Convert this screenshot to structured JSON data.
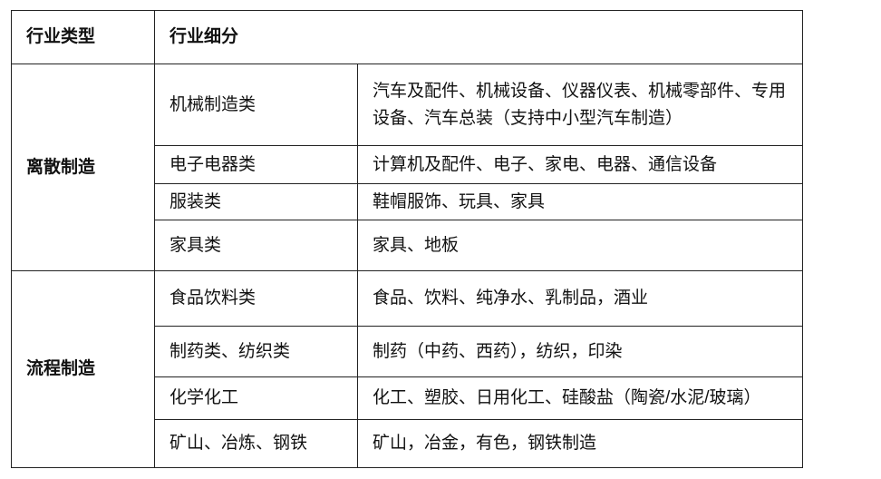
{
  "table": {
    "headers": [
      "行业类型",
      "行业细分"
    ],
    "groups": [
      {
        "type": "离散制造",
        "rows": [
          {
            "category": "机械制造类",
            "detail": "汽车及配件、机械设备、仪器仪表、机械零部件、专用设备、汽车总装（支持中小型汽车制造）"
          },
          {
            "category": "电子电器类",
            "detail": "计算机及配件、电子、家电、电器、通信设备"
          },
          {
            "category": "服装类",
            "detail": "鞋帽服饰、玩具、家具"
          },
          {
            "category": "家具类",
            "detail": "家具、地板"
          }
        ]
      },
      {
        "type": "流程制造",
        "rows": [
          {
            "category": "食品饮料类",
            "detail": "食品、饮料、纯净水、乳制品，酒业"
          },
          {
            "category": "制药类、纺织类",
            "detail": "制药（中药、西药），纺织，印染"
          },
          {
            "category": "化学化工",
            "detail": "化工、塑胶、日用化工、硅酸盐（陶瓷/水泥/玻璃）"
          },
          {
            "category": "矿山、冶炼、钢铁",
            "detail": "矿山，冶金，有色，钢铁制造"
          }
        ]
      }
    ]
  }
}
